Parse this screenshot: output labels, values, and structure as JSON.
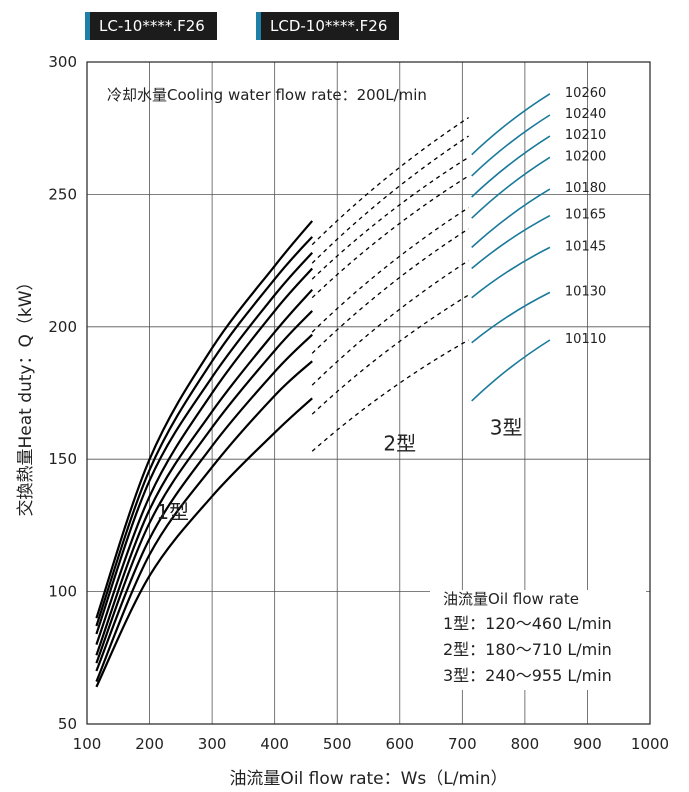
{
  "tags": [
    "LC-10****.F26",
    "LCD-10****.F26"
  ],
  "chart_data": {
    "type": "line",
    "xlabel": "油流量Oil flow rate：Ws（L/min）",
    "ylabel": "交換熱量Heat duty：Q（kW）",
    "xlim": [
      100,
      1000
    ],
    "ylim": [
      50,
      300
    ],
    "xticks": [
      100,
      200,
      300,
      400,
      500,
      600,
      700,
      800,
      900,
      1000
    ],
    "yticks": [
      50,
      100,
      150,
      200,
      250,
      300
    ],
    "grid": true,
    "annotation_top": "冷却水量Cooling water flow rate：200L/min",
    "zone_labels": [
      {
        "text": "1型",
        "x": 237,
        "y": 130
      },
      {
        "text": "2型",
        "x": 600,
        "y": 156
      },
      {
        "text": "3型",
        "x": 770,
        "y": 162
      }
    ],
    "legend": {
      "title": "油流量Oil flow rate",
      "lines": [
        "1型：120～460 L/min",
        "2型：180～710 L/min",
        "3型：240～955 L/min"
      ]
    },
    "colors": {
      "type1": "#000000",
      "type2": "#000000",
      "type3": "#1a7a9b"
    },
    "series": [
      {
        "name": "10260",
        "type1": {
          "x": [
            115,
            200,
            300,
            400,
            460
          ],
          "y": [
            90,
            150,
            192,
            223,
            240
          ]
        },
        "type2": {
          "x": [
            460,
            710
          ],
          "y": [
            231,
            279
          ]
        },
        "type3": {
          "x": [
            715,
            840
          ],
          "y": [
            265,
            288
          ]
        }
      },
      {
        "name": "10240",
        "type1": {
          "x": [
            115,
            200,
            300,
            400,
            460
          ],
          "y": [
            87,
            146,
            187,
            218,
            234
          ]
        },
        "type2": {
          "x": [
            460,
            710
          ],
          "y": [
            224,
            272
          ]
        },
        "type3": {
          "x": [
            715,
            840
          ],
          "y": [
            257,
            280
          ]
        }
      },
      {
        "name": "10210",
        "type1": {
          "x": [
            115,
            200,
            300,
            400,
            460
          ],
          "y": [
            84,
            142,
            181,
            212,
            228
          ]
        },
        "type2": {
          "x": [
            460,
            710
          ],
          "y": [
            218,
            264
          ]
        },
        "type3": {
          "x": [
            715,
            840
          ],
          "y": [
            249,
            272
          ]
        }
      },
      {
        "name": "10200",
        "type1": {
          "x": [
            115,
            200,
            300,
            400,
            460
          ],
          "y": [
            80,
            136,
            175,
            206,
            222
          ]
        },
        "type2": {
          "x": [
            460,
            710
          ],
          "y": [
            211,
            257
          ]
        },
        "type3": {
          "x": [
            715,
            840
          ],
          "y": [
            241,
            264
          ]
        }
      },
      {
        "name": "10180",
        "type1": {
          "x": [
            115,
            200,
            300,
            400,
            460
          ],
          "y": [
            76,
            131,
            168,
            198,
            214
          ]
        },
        "type2": {
          "x": [
            460,
            710
          ],
          "y": [
            198,
            245
          ]
        },
        "type3": {
          "x": [
            715,
            840
          ],
          "y": [
            230,
            252
          ]
        }
      },
      {
        "name": "10165",
        "type1": {
          "x": [
            115,
            200,
            300,
            400,
            460
          ],
          "y": [
            73,
            126,
            162,
            191,
            206
          ]
        },
        "type2": {
          "x": [
            460,
            710
          ],
          "y": [
            190,
            237
          ]
        },
        "type3": {
          "x": [
            715,
            840
          ],
          "y": [
            222,
            242
          ]
        }
      },
      {
        "name": "10145",
        "type1": {
          "x": [
            115,
            200,
            300,
            400,
            460
          ],
          "y": [
            70,
            120,
            155,
            183,
            197
          ]
        },
        "type2": {
          "x": [
            460,
            710
          ],
          "y": [
            178,
            225
          ]
        },
        "type3": {
          "x": [
            715,
            840
          ],
          "y": [
            211,
            230
          ]
        }
      },
      {
        "name": "10130",
        "type1": {
          "x": [
            115,
            200,
            300,
            400,
            460
          ],
          "y": [
            66,
            114,
            147,
            174,
            187
          ]
        },
        "type2": {
          "x": [
            460,
            710
          ],
          "y": [
            167,
            212
          ]
        },
        "type3": {
          "x": [
            715,
            840
          ],
          "y": [
            194,
            213
          ]
        }
      },
      {
        "name": "10110",
        "type1": {
          "x": [
            115,
            200,
            300,
            400,
            460
          ],
          "y": [
            64,
            106,
            136,
            160,
            173
          ]
        },
        "type2": {
          "x": [
            460,
            710
          ],
          "y": [
            153,
            195
          ]
        },
        "type3": {
          "x": [
            715,
            840
          ],
          "y": [
            172,
            195
          ]
        }
      }
    ]
  }
}
